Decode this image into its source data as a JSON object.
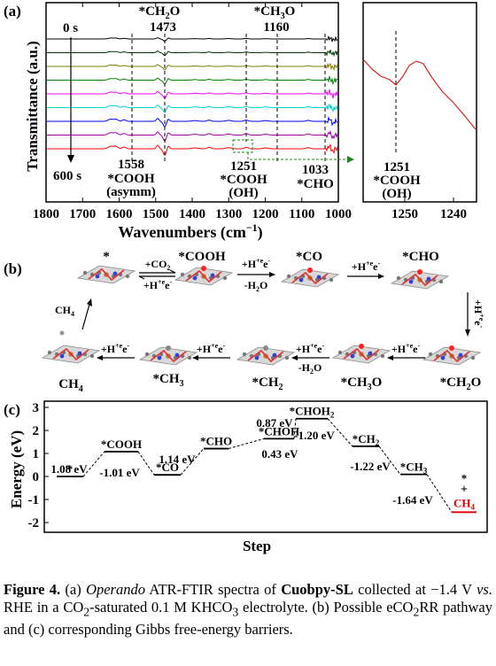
{
  "panel_a": {
    "label": "(a)",
    "ylabel": "Transmittance (a.u.)",
    "xlabel": "Wavenumbers (cm",
    "xlabel_sup": "−1",
    "xlabel_close": ")",
    "time_start": "0 s",
    "time_end": "600 s",
    "x_ticks": [
      "1800",
      "1700",
      "1600",
      "1500",
      "1400",
      "1300",
      "1200",
      "1100",
      "1000"
    ],
    "annotations": {
      "ch2o_label": "*CH",
      "ch2o_sub": "2",
      "ch2o_tail": "O",
      "ch2o_value": "1473",
      "ch3o_label": "*CH",
      "ch3o_sub": "3",
      "ch3o_tail": "O",
      "ch3o_value": "1160",
      "cooh_asym_value": "1558",
      "cooh_asym_label": "*COOH",
      "cooh_asym_note": "(asymm)",
      "cooh_oh_value": "1251",
      "cooh_oh_label": "*COOH",
      "cooh_oh_note": "(OH)",
      "cho_value": "1033",
      "cho_label": "*CHO"
    },
    "spectra_colors": [
      "#000000",
      "#003300",
      "#808000",
      "#008000",
      "#ff00ff",
      "#00d0d0",
      "#0000ff",
      "#a000a0",
      "#ff0000"
    ],
    "inset": {
      "x_ticks": [
        "1250",
        "1240"
      ],
      "value": "1251",
      "label": "*COOH",
      "note": "(OH)",
      "color": "#dd2222"
    }
  },
  "panel_b": {
    "label": "(b)",
    "top_row": [
      "*",
      "*COOH",
      "*CO",
      "*CHO"
    ],
    "bottom_row": [
      "CH",
      "*CH",
      "*CH",
      "*CH",
      "*CH"
    ],
    "bottom_subs": [
      "4",
      "3",
      "2",
      "3",
      "2"
    ],
    "bottom_tails": [
      "",
      "",
      "",
      "O",
      "O"
    ],
    "arrow_co2_top": "+CO",
    "arrow_co2_sub": "2",
    "arrow_co2_bottom": "+H",
    "arrow_h_top": "+H",
    "arrow_h2o_bottom": "-H",
    "arrow_h2o_sub": "2",
    "arrow_h2o_tail": "O",
    "arrow_h_text": "+H",
    "plus_e": "+e",
    "minus": "-",
    "ch4_release": "CH",
    "ch4_sub": "4"
  },
  "panel_c": {
    "label": "(c)",
    "ylabel": "Energy (eV)",
    "xlabel": "Step",
    "chart_data": {
      "type": "line",
      "y_ticks": [
        "3",
        "2",
        "1",
        "0",
        "-1",
        "-2"
      ],
      "ylim": [
        -2,
        3
      ],
      "steps": [
        {
          "label": "*",
          "energy": 0.0
        },
        {
          "label": "*COOH",
          "energy": 1.08
        },
        {
          "label": "*CO",
          "energy": 0.07
        },
        {
          "label": "*CHO",
          "energy": 1.21
        },
        {
          "label": "*CHOH",
          "energy": 1.64
        },
        {
          "label": "*CHOH",
          "sub": "2",
          "energy": 2.51
        },
        {
          "label": "*CH",
          "sub": "2",
          "energy": 1.31
        },
        {
          "label": "*CH",
          "sub": "3",
          "energy": 0.09
        },
        {
          "label": "CH",
          "sub": "4",
          "energy": -1.55
        }
      ],
      "barriers": [
        "1.08 eV",
        "-1.01 eV",
        "1.14 eV",
        "0.43 eV",
        "0.87 eV",
        "-1.20 eV",
        "-1.22 eV",
        "-1.64 eV"
      ],
      "final_star": "*",
      "final_plus": "+",
      "final_color": "#dd0000"
    }
  },
  "caption": {
    "fig": "Figure 4.",
    "t1": " (a) ",
    "operando": "Operando",
    "t2": " ATR-FTIR spectra of ",
    "sample": "Cuobpy-SL",
    "t3": " collected at −1.4 V ",
    "vs": "vs.",
    "t4": " RHE in a CO",
    "sub1": "2",
    "t5": "-saturated 0.1 M KHCO",
    "sub2": "3",
    "t6": " electrolyte. (b) Possible eCO",
    "sub3": "2",
    "t7": "RR pathway and (c) corresponding Gibbs free-energy barriers."
  }
}
